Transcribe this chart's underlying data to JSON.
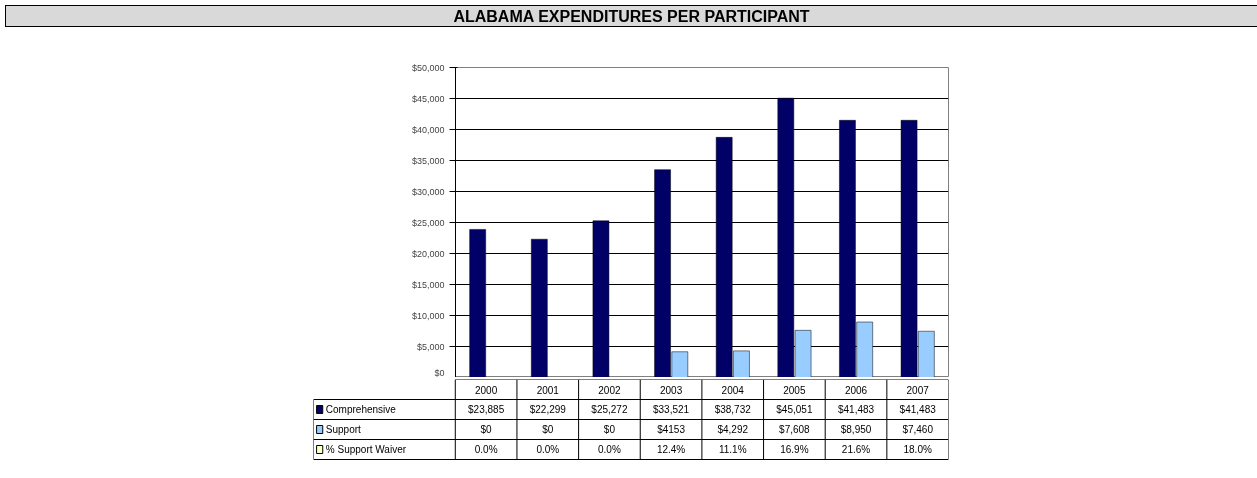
{
  "chart_data": {
    "type": "bar",
    "title": "ALABAMA EXPENDITURES PER PARTICIPANT",
    "categories": [
      "2000",
      "2001",
      "2002",
      "2003",
      "2004",
      "2005",
      "2006",
      "2007"
    ],
    "series": [
      {
        "name": "Comprehensive",
        "color": "#000066",
        "values": [
          23885,
          22299,
          25272,
          33521,
          38732,
          45051,
          41483,
          41483
        ],
        "value_labels": [
          "$23,885",
          "$22,299",
          "$25,272",
          "$33,521",
          "$38,732",
          "$45,051",
          "$41,483",
          "$41,483"
        ]
      },
      {
        "name": "Support",
        "color": "#99ccff",
        "values": [
          0,
          0,
          0,
          4153,
          4292,
          7608,
          8950,
          7460
        ],
        "value_labels": [
          "$0",
          "$0",
          "$0",
          "$4153",
          "$4,292",
          "$7,608",
          "$8,950",
          "$7,460"
        ]
      },
      {
        "name": "% Support Waiver",
        "color": "#ffffcc",
        "values": [
          null,
          null,
          null,
          null,
          null,
          null,
          null,
          null
        ],
        "value_labels": [
          "0.0%",
          "0.0%",
          "0.0%",
          "12.4%",
          "11.1%",
          "16.9%",
          "21.6%",
          "18.0%"
        ]
      }
    ],
    "ylim": [
      0,
      50000
    ],
    "yticks": [
      {
        "value": 0,
        "label": "$0"
      },
      {
        "value": 5000,
        "label": "$5,000"
      },
      {
        "value": 10000,
        "label": "$10,000"
      },
      {
        "value": 15000,
        "label": "$15,000"
      },
      {
        "value": 20000,
        "label": "$20,000"
      },
      {
        "value": 25000,
        "label": "$25,000"
      },
      {
        "value": 30000,
        "label": "$30,000"
      },
      {
        "value": 35000,
        "label": "$35,000"
      },
      {
        "value": 40000,
        "label": "$40,000"
      },
      {
        "value": 45000,
        "label": "$45,000"
      },
      {
        "value": 50000,
        "label": "$50,000"
      }
    ],
    "grid": "y",
    "legend": "bottom"
  }
}
